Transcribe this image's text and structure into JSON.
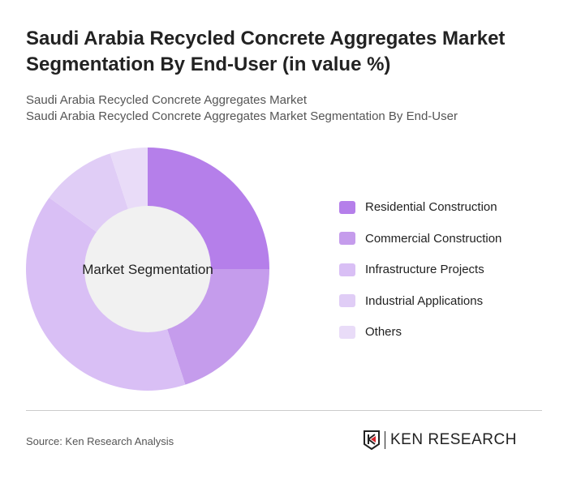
{
  "title": "Saudi Arabia Recycled Concrete Aggregates Market Segmentation By End-User (in value %)",
  "subtitle1": "Saudi Arabia Recycled Concrete Aggregates Market",
  "subtitle2": "Saudi Arabia Recycled Concrete Aggregates Market Segmentation By End-User",
  "source": "Source: Ken Research Analysis",
  "logo_text": "KEN RESEARCH",
  "chart_data": {
    "type": "pie",
    "style": "donut",
    "center_label": "Market Segmentation",
    "legend_position": "right",
    "categories": [
      "Residential Construction",
      "Commercial Construction",
      "Infrastructure Projects",
      "Industrial Applications",
      "Others"
    ],
    "values": [
      25,
      20,
      40,
      10,
      5
    ],
    "colors": [
      "#b57fea",
      "#c59cec",
      "#d9bff5",
      "#e0cdf6",
      "#e9dcf8"
    ]
  }
}
